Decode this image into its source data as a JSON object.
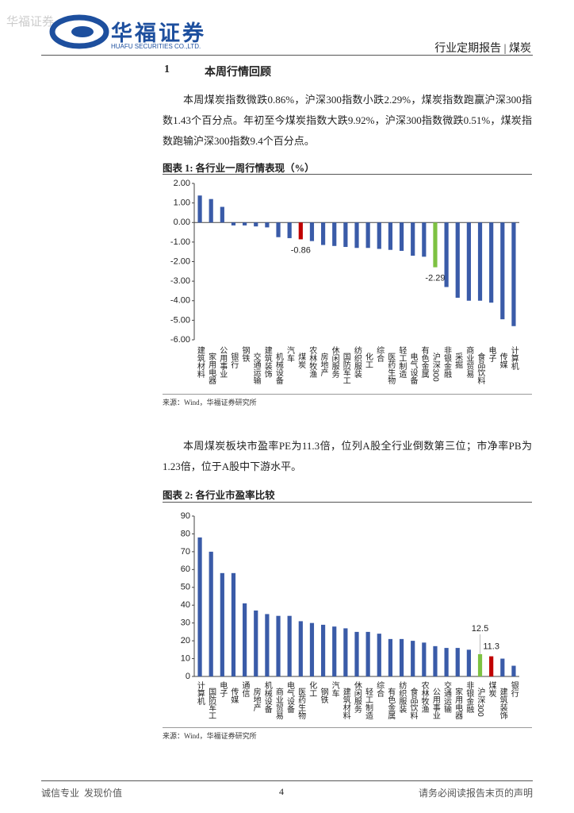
{
  "header": {
    "watermark": "华福证券",
    "logo_cn": "华福证券",
    "logo_en": "HUAFU SECURITIES CO.,LTD.",
    "report_type": "行业定期报告 | 煤炭"
  },
  "section": {
    "number": "1",
    "title": "本周行情回顾"
  },
  "paragraphs": [
    "本周煤炭指数微跌0.86%，沪深300指数小跌2.29%，煤炭指数跑赢沪深300指数1.43个百分点。年初至今煤炭指数大跌9.92%，沪深300指数微跌0.51%，煤炭指数跑输沪深300指数9.4个百分点。",
    "本周煤炭板块市盈率PE为11.3倍，位列A股全行业倒数第三位；市净率PB为1.23倍，位于A股中下游水平。"
  ],
  "chart_data": [
    {
      "type": "bar",
      "title": "图表 1: 各行业一周行情表现（%）",
      "source": "来源：Wind，华福证券研究所",
      "categories": [
        "建筑材料",
        "家用电器",
        "公用事业",
        "银行",
        "钢铁",
        "交通运输",
        "建筑装饰",
        "机械设备",
        "汽车",
        "煤炭",
        "农林牧渔",
        "房地产",
        "休闲服务",
        "国防军工",
        "纺织服装",
        "化工",
        "综合",
        "医药生物",
        "轻工制造",
        "电气设备",
        "有色金属",
        "沪深300",
        "非银金融",
        "采掘",
        "商业贸易",
        "食品饮料",
        "电子",
        "传媒",
        "计算机"
      ],
      "values": [
        1.38,
        1.2,
        0.8,
        -0.15,
        -0.15,
        -0.2,
        -0.25,
        -0.75,
        -0.8,
        -0.86,
        -0.95,
        -1.15,
        -1.2,
        -1.25,
        -1.3,
        -1.3,
        -1.35,
        -1.4,
        -1.45,
        -1.7,
        -1.75,
        -2.29,
        -3.3,
        -3.85,
        -4.0,
        -4.0,
        -4.1,
        -4.95,
        -5.3
      ],
      "value_labels": [
        null,
        null,
        null,
        null,
        null,
        null,
        null,
        null,
        null,
        "-0.86",
        null,
        null,
        null,
        null,
        null,
        null,
        null,
        null,
        null,
        null,
        null,
        "-2.29",
        null,
        null,
        null,
        null,
        null,
        null,
        null
      ],
      "colors": [
        "#3a5ba8",
        "#3a5ba8",
        "#3a5ba8",
        "#3a5ba8",
        "#3a5ba8",
        "#3a5ba8",
        "#3a5ba8",
        "#3a5ba8",
        "#3a5ba8",
        "#c00000",
        "#3a5ba8",
        "#3a5ba8",
        "#3a5ba8",
        "#3a5ba8",
        "#3a5ba8",
        "#3a5ba8",
        "#3a5ba8",
        "#3a5ba8",
        "#3a5ba8",
        "#3a5ba8",
        "#3a5ba8",
        "#7dc242",
        "#3a5ba8",
        "#3a5ba8",
        "#3a5ba8",
        "#3a5ba8",
        "#3a5ba8",
        "#3a5ba8",
        "#3a5ba8"
      ],
      "ylim": [
        -6,
        2
      ],
      "yticks": [
        {
          "value": -6,
          "label": "-6.00"
        },
        {
          "value": -5,
          "label": "-5.00"
        },
        {
          "value": -4,
          "label": "-4.00"
        },
        {
          "value": -3,
          "label": "-3.00"
        },
        {
          "value": -2,
          "label": "-2.00"
        },
        {
          "value": -1,
          "label": "-1.00"
        },
        {
          "value": 0,
          "label": "0.00"
        },
        {
          "value": 1,
          "label": "1.00"
        },
        {
          "value": 2,
          "label": "2.00"
        }
      ],
      "grid": false
    },
    {
      "type": "bar",
      "title": "图表 2: 各行业市盈率比较",
      "source": "来源：Wind，华福证券研究所",
      "categories": [
        "计算机",
        "国防军工",
        "电子",
        "传媒",
        "通信",
        "房地产",
        "机械设备",
        "商业贸易",
        "电气设备",
        "医药生物",
        "化工",
        "钢铁",
        "汽车",
        "建筑材料",
        "休闲服务",
        "轻工制造",
        "综合",
        "有色金属",
        "纺织服装",
        "食品饮料",
        "农林牧渔",
        "公用事业",
        "交通运输",
        "家用电器",
        "非银金融",
        "沪深300",
        "煤炭",
        "建筑装饰",
        "银行"
      ],
      "values": [
        78,
        70,
        58,
        58,
        41,
        37,
        35,
        34,
        34,
        31,
        30,
        29,
        28,
        27,
        25,
        25,
        24,
        21,
        21,
        20,
        19,
        17,
        16,
        16,
        15,
        12.5,
        11.3,
        10,
        6
      ],
      "value_labels": [
        null,
        null,
        null,
        null,
        null,
        null,
        null,
        null,
        null,
        null,
        null,
        null,
        null,
        null,
        null,
        null,
        null,
        null,
        null,
        null,
        null,
        null,
        null,
        null,
        null,
        "12.5",
        "11.3",
        null,
        null
      ],
      "colors": [
        "#3a5ba8",
        "#3a5ba8",
        "#3a5ba8",
        "#3a5ba8",
        "#3a5ba8",
        "#3a5ba8",
        "#3a5ba8",
        "#3a5ba8",
        "#3a5ba8",
        "#3a5ba8",
        "#3a5ba8",
        "#3a5ba8",
        "#3a5ba8",
        "#3a5ba8",
        "#3a5ba8",
        "#3a5ba8",
        "#3a5ba8",
        "#3a5ba8",
        "#3a5ba8",
        "#3a5ba8",
        "#3a5ba8",
        "#3a5ba8",
        "#3a5ba8",
        "#3a5ba8",
        "#3a5ba8",
        "#7dc242",
        "#c00000",
        "#3a5ba8",
        "#3a5ba8"
      ],
      "ylim": [
        0,
        90
      ],
      "yticks": [
        0,
        10,
        20,
        30,
        40,
        50,
        60,
        70,
        80,
        90
      ],
      "grid": false
    }
  ],
  "footer": {
    "left": "诚信专业  发现价值",
    "page": "4",
    "right": "请务必阅读报告末页的声明"
  }
}
